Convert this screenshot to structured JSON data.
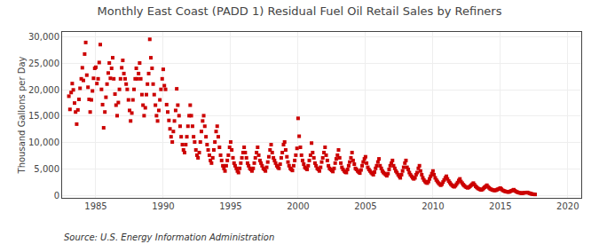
{
  "chart_data": {
    "type": "scatter",
    "title": "Monthly East Coast (PADD 1) Residual Fuel Oil Retail Sales by Refiners",
    "ylabel": "Thousand Gallons per Day",
    "annotations": [
      "Source: U.S. Energy Information Administration"
    ],
    "color": "#CC0000",
    "marker": "square",
    "grid": true,
    "xlim": [
      1982.5,
      2021
    ],
    "ylim": [
      -500,
      31000
    ],
    "xticks": [
      1985,
      1990,
      1995,
      2000,
      2005,
      2010,
      2015,
      2020
    ],
    "yticks": [
      0,
      {
        "value": 5000,
        "label": "5,000"
      },
      {
        "value": 10000,
        "label": "10,000"
      },
      {
        "value": 15000,
        "label": "15,000"
      },
      {
        "value": 20000,
        "label": "20,000"
      },
      {
        "value": 25000,
        "label": "25,000"
      },
      {
        "value": 30000,
        "label": "30,000"
      }
    ],
    "x": [
      1983.0,
      1983.08,
      1983.17,
      1983.25,
      1983.33,
      1983.42,
      1983.5,
      1983.58,
      1983.67,
      1983.75,
      1983.83,
      1983.92,
      1984.0,
      1984.08,
      1984.17,
      1984.25,
      1984.33,
      1984.42,
      1984.5,
      1984.58,
      1984.67,
      1984.75,
      1984.83,
      1984.92,
      1985.0,
      1985.08,
      1985.17,
      1985.25,
      1985.33,
      1985.42,
      1985.5,
      1985.58,
      1985.67,
      1985.75,
      1985.83,
      1985.92,
      1986.0,
      1986.08,
      1986.17,
      1986.25,
      1986.33,
      1986.42,
      1986.5,
      1986.58,
      1986.67,
      1986.75,
      1986.83,
      1986.92,
      1987.0,
      1987.08,
      1987.17,
      1987.25,
      1987.33,
      1987.42,
      1987.5,
      1987.58,
      1987.67,
      1987.75,
      1987.83,
      1987.92,
      1988.0,
      1988.08,
      1988.17,
      1988.25,
      1988.33,
      1988.42,
      1988.5,
      1988.58,
      1988.67,
      1988.75,
      1988.83,
      1988.92,
      1989.0,
      1989.08,
      1989.17,
      1989.25,
      1989.33,
      1989.42,
      1989.5,
      1989.58,
      1989.67,
      1989.75,
      1989.83,
      1989.92,
      1990.0,
      1990.08,
      1990.17,
      1990.25,
      1990.33,
      1990.42,
      1990.5,
      1990.58,
      1990.67,
      1990.75,
      1990.83,
      1990.92,
      1991.0,
      1991.08,
      1991.17,
      1991.25,
      1991.33,
      1991.42,
      1991.5,
      1991.58,
      1991.67,
      1991.75,
      1991.83,
      1991.92,
      1992.0,
      1992.08,
      1992.17,
      1992.25,
      1992.33,
      1992.42,
      1992.5,
      1992.58,
      1992.67,
      1992.75,
      1992.83,
      1992.92,
      1993.0,
      1993.08,
      1993.17,
      1993.25,
      1993.33,
      1993.42,
      1993.5,
      1993.58,
      1993.67,
      1993.75,
      1993.83,
      1993.92,
      1994.0,
      1994.08,
      1994.17,
      1994.25,
      1994.33,
      1994.42,
      1994.5,
      1994.58,
      1994.67,
      1994.75,
      1994.83,
      1994.92,
      1995.0,
      1995.08,
      1995.17,
      1995.25,
      1995.33,
      1995.42,
      1995.5,
      1995.58,
      1995.67,
      1995.75,
      1995.83,
      1995.92,
      1996.0,
      1996.08,
      1996.17,
      1996.25,
      1996.33,
      1996.42,
      1996.5,
      1996.58,
      1996.67,
      1996.75,
      1996.83,
      1996.92,
      1997.0,
      1997.08,
      1997.17,
      1997.25,
      1997.33,
      1997.42,
      1997.5,
      1997.58,
      1997.67,
      1997.75,
      1997.83,
      1997.92,
      1998.0,
      1998.08,
      1998.17,
      1998.25,
      1998.33,
      1998.42,
      1998.5,
      1998.58,
      1998.67,
      1998.75,
      1998.83,
      1998.92,
      1999.0,
      1999.08,
      1999.17,
      1999.25,
      1999.33,
      1999.42,
      1999.5,
      1999.58,
      1999.67,
      1999.75,
      1999.83,
      1999.92,
      2000.0,
      2000.08,
      2000.17,
      2000.25,
      2000.33,
      2000.42,
      2000.5,
      2000.58,
      2000.67,
      2000.75,
      2000.83,
      2000.92,
      2001.0,
      2001.08,
      2001.17,
      2001.25,
      2001.33,
      2001.42,
      2001.5,
      2001.58,
      2001.67,
      2001.75,
      2001.83,
      2001.92,
      2002.0,
      2002.08,
      2002.17,
      2002.25,
      2002.33,
      2002.42,
      2002.5,
      2002.58,
      2002.67,
      2002.75,
      2002.83,
      2002.92,
      2003.0,
      2003.08,
      2003.17,
      2003.25,
      2003.33,
      2003.42,
      2003.5,
      2003.58,
      2003.67,
      2003.75,
      2003.83,
      2003.92,
      2004.0,
      2004.08,
      2004.17,
      2004.25,
      2004.33,
      2004.42,
      2004.5,
      2004.58,
      2004.67,
      2004.75,
      2004.83,
      2004.92,
      2005.0,
      2005.08,
      2005.17,
      2005.25,
      2005.33,
      2005.42,
      2005.5,
      2005.58,
      2005.67,
      2005.75,
      2005.83,
      2005.92,
      2006.0,
      2006.08,
      2006.17,
      2006.25,
      2006.33,
      2006.42,
      2006.5,
      2006.58,
      2006.67,
      2006.75,
      2006.83,
      2006.92,
      2007.0,
      2007.08,
      2007.17,
      2007.25,
      2007.33,
      2007.42,
      2007.5,
      2007.58,
      2007.67,
      2007.75,
      2007.83,
      2007.92,
      2008.0,
      2008.08,
      2008.17,
      2008.25,
      2008.33,
      2008.42,
      2008.5,
      2008.58,
      2008.67,
      2008.75,
      2008.83,
      2008.92,
      2009.0,
      2009.08,
      2009.17,
      2009.25,
      2009.33,
      2009.42,
      2009.5,
      2009.58,
      2009.67,
      2009.75,
      2009.83,
      2009.92,
      2010.0,
      2010.08,
      2010.17,
      2010.25,
      2010.33,
      2010.42,
      2010.5,
      2010.58,
      2010.67,
      2010.75,
      2010.83,
      2010.92,
      2011.0,
      2011.08,
      2011.17,
      2011.25,
      2011.33,
      2011.42,
      2011.5,
      2011.58,
      2011.67,
      2011.75,
      2011.83,
      2011.92,
      2012.0,
      2012.08,
      2012.17,
      2012.25,
      2012.33,
      2012.42,
      2012.5,
      2012.58,
      2012.67,
      2012.75,
      2012.83,
      2012.92,
      2013.0,
      2013.08,
      2013.17,
      2013.25,
      2013.33,
      2013.42,
      2013.5,
      2013.58,
      2013.67,
      2013.75,
      2013.83,
      2013.92,
      2014.0,
      2014.08,
      2014.17,
      2014.25,
      2014.33,
      2014.42,
      2014.5,
      2014.58,
      2014.67,
      2014.75,
      2014.83,
      2014.92,
      2015.0,
      2015.08,
      2015.17,
      2015.25,
      2015.33,
      2015.42,
      2015.5,
      2015.58,
      2015.67,
      2015.75,
      2015.83,
      2015.92,
      2016.0,
      2016.08,
      2016.17,
      2016.25,
      2016.33,
      2016.42,
      2016.5,
      2016.58,
      2016.67,
      2016.75,
      2016.83,
      2017.0,
      2017.08,
      2017.17,
      2017.25,
      2017.33,
      2017.42,
      2017.5,
      2017.58
    ],
    "values": [
      18800,
      16300,
      19500,
      21200,
      20000,
      17500,
      15800,
      13500,
      16200,
      18200,
      20300,
      22100,
      24200,
      21800,
      26800,
      29000,
      22800,
      20500,
      18200,
      15800,
      18100,
      19800,
      22200,
      24100,
      24300,
      21200,
      22100,
      25200,
      28600,
      20100,
      17200,
      12800,
      15800,
      18600,
      21100,
      23200,
      25100,
      22200,
      24100,
      26100,
      22100,
      19200,
      17100,
      15100,
      17600,
      20100,
      22100,
      24200,
      25600,
      23100,
      22100,
      21100,
      20100,
      18100,
      16100,
      14100,
      15600,
      18100,
      20100,
      22100,
      24100,
      22100,
      23100,
      25100,
      22100,
      19100,
      17100,
      15100,
      16600,
      19100,
      21100,
      23100,
      29600,
      26100,
      24100,
      21100,
      19100,
      17100,
      15100,
      14100,
      16100,
      18100,
      20100,
      22100,
      23900,
      20800,
      20100,
      17200,
      15800,
      14200,
      12600,
      11100,
      10100,
      12100,
      14100,
      16100,
      20200,
      17100,
      15100,
      13100,
      11100,
      9600,
      8600,
      8100,
      9600,
      11100,
      13100,
      15100,
      17100,
      15100,
      13100,
      11100,
      10100,
      8600,
      7600,
      7100,
      8100,
      10100,
      12100,
      14100,
      15100,
      13100,
      11100,
      9600,
      8600,
      7600,
      6600,
      6100,
      7100,
      8600,
      10100,
      12100,
      13100,
      11100,
      9100,
      7600,
      6600,
      5600,
      5100,
      4600,
      5600,
      6600,
      7600,
      9100,
      10100,
      8600,
      7100,
      6100,
      5600,
      5100,
      4600,
      4300,
      5100,
      6100,
      7100,
      8100,
      9100,
      8100,
      7100,
      6100,
      5600,
      5100,
      4900,
      4600,
      5100,
      6100,
      7100,
      8100,
      9100,
      7600,
      6600,
      6100,
      5600,
      5100,
      4900,
      4600,
      5300,
      6300,
      7300,
      8600,
      9600,
      8100,
      7100,
      6600,
      6100,
      5600,
      5300,
      5100,
      5900,
      7100,
      8100,
      9600,
      10100,
      8600,
      7300,
      6300,
      5600,
      5100,
      4900,
      4700,
      5600,
      6600,
      7600,
      8900,
      14600,
      11200,
      9100,
      7600,
      6600,
      5900,
      5300,
      5100,
      4900,
      5600,
      6600,
      7600,
      9900,
      8100,
      7100,
      6100,
      5600,
      5100,
      4900,
      4600,
      5300,
      6300,
      7100,
      8100,
      9100,
      7600,
      6600,
      5600,
      5100,
      4900,
      4700,
      4500,
      5100,
      6100,
      6900,
      7600,
      8600,
      7100,
      6100,
      5300,
      4900,
      4600,
      4400,
      4300,
      4900,
      5600,
      6300,
      7100,
      8100,
      6600,
      5900,
      5100,
      4900,
      4600,
      4400,
      4200,
      4800,
      5600,
      6300,
      6900,
      7300,
      6100,
      5300,
      4900,
      4600,
      4300,
      4100,
      3900,
      4400,
      5100,
      5600,
      6300,
      6900,
      5600,
      5100,
      4600,
      4300,
      4100,
      3900,
      3700,
      4100,
      4900,
      5600,
      6100,
      6600,
      5600,
      5100,
      4600,
      4300,
      3900,
      3600,
      3300,
      3900,
      4600,
      5300,
      6100,
      6600,
      5300,
      4900,
      4300,
      3900,
      3600,
      3300,
      3100,
      3300,
      3900,
      4300,
      5100,
      5600,
      4600,
      3900,
      3300,
      2900,
      2600,
      2400,
      2300,
      2600,
      3100,
      3600,
      4100,
      4600,
      3900,
      3300,
      2900,
      2600,
      2300,
      2100,
      1900,
      2100,
      2500,
      2900,
      3300,
      3600,
      3100,
      2700,
      2400,
      2100,
      1900,
      1700,
      1600,
      1800,
      2100,
      2400,
      2800,
      3100,
      2600,
      2300,
      2000,
      1800,
      1600,
      1500,
      1400,
      1500,
      1700,
      1900,
      2100,
      2300,
      2000,
      1700,
      1500,
      1300,
      1200,
      1100,
      1000,
      1100,
      1300,
      1500,
      1700,
      1900,
      1600,
      1400,
      1200,
      1100,
      1000,
      950,
      900,
      950,
      1050,
      1150,
      1250,
      1350,
      1150,
      950,
      850,
      750,
      700,
      650,
      600,
      650,
      750,
      850,
      950,
      1050,
      850,
      700,
      600,
      520,
      460,
      420,
      390,
      410,
      450,
      490,
      530,
      450,
      370,
      300,
      240,
      200,
      170,
      150
    ]
  }
}
